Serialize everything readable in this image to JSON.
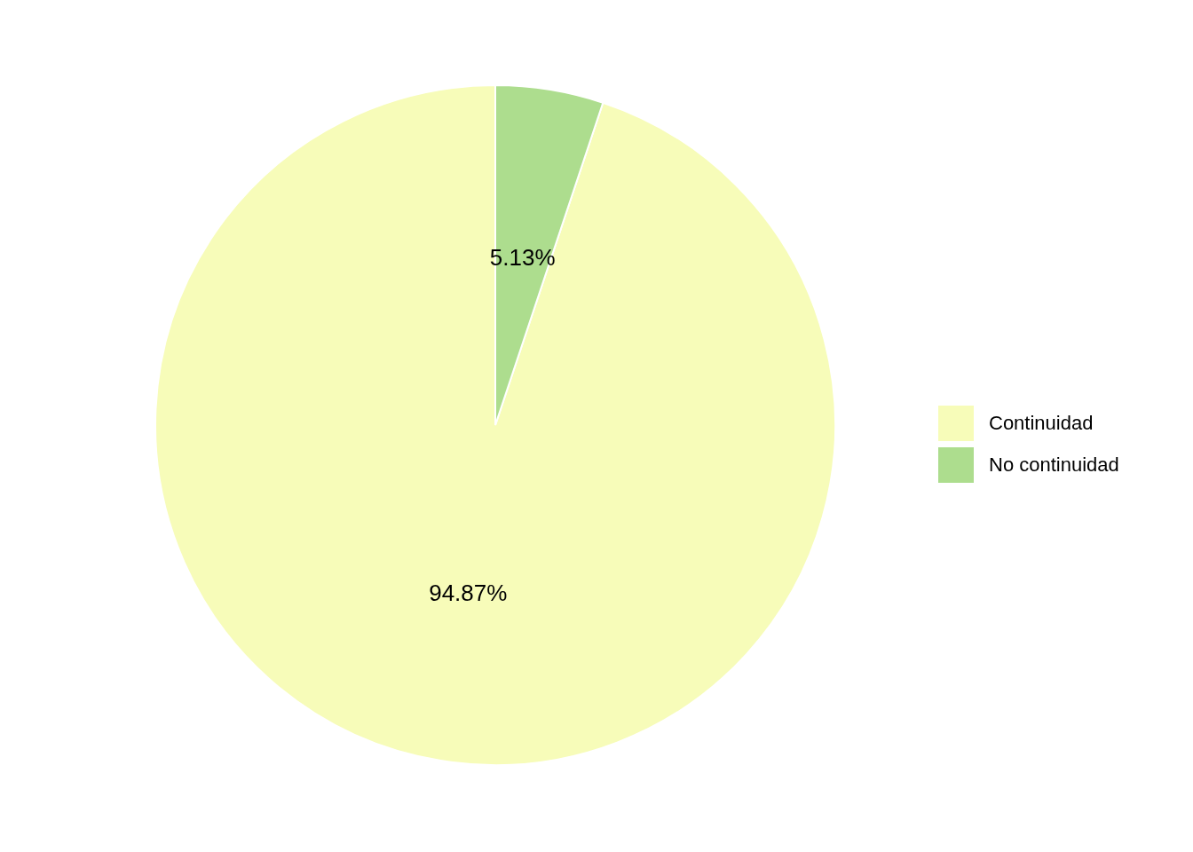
{
  "chart_data": {
    "type": "pie",
    "categories": [
      "Continuidad",
      "No continuidad"
    ],
    "values": [
      94.87,
      5.13
    ],
    "colors": [
      "#f7fcb9",
      "#addd8e"
    ],
    "value_labels": [
      "94.87%",
      "5.13%"
    ],
    "legend": "right"
  }
}
